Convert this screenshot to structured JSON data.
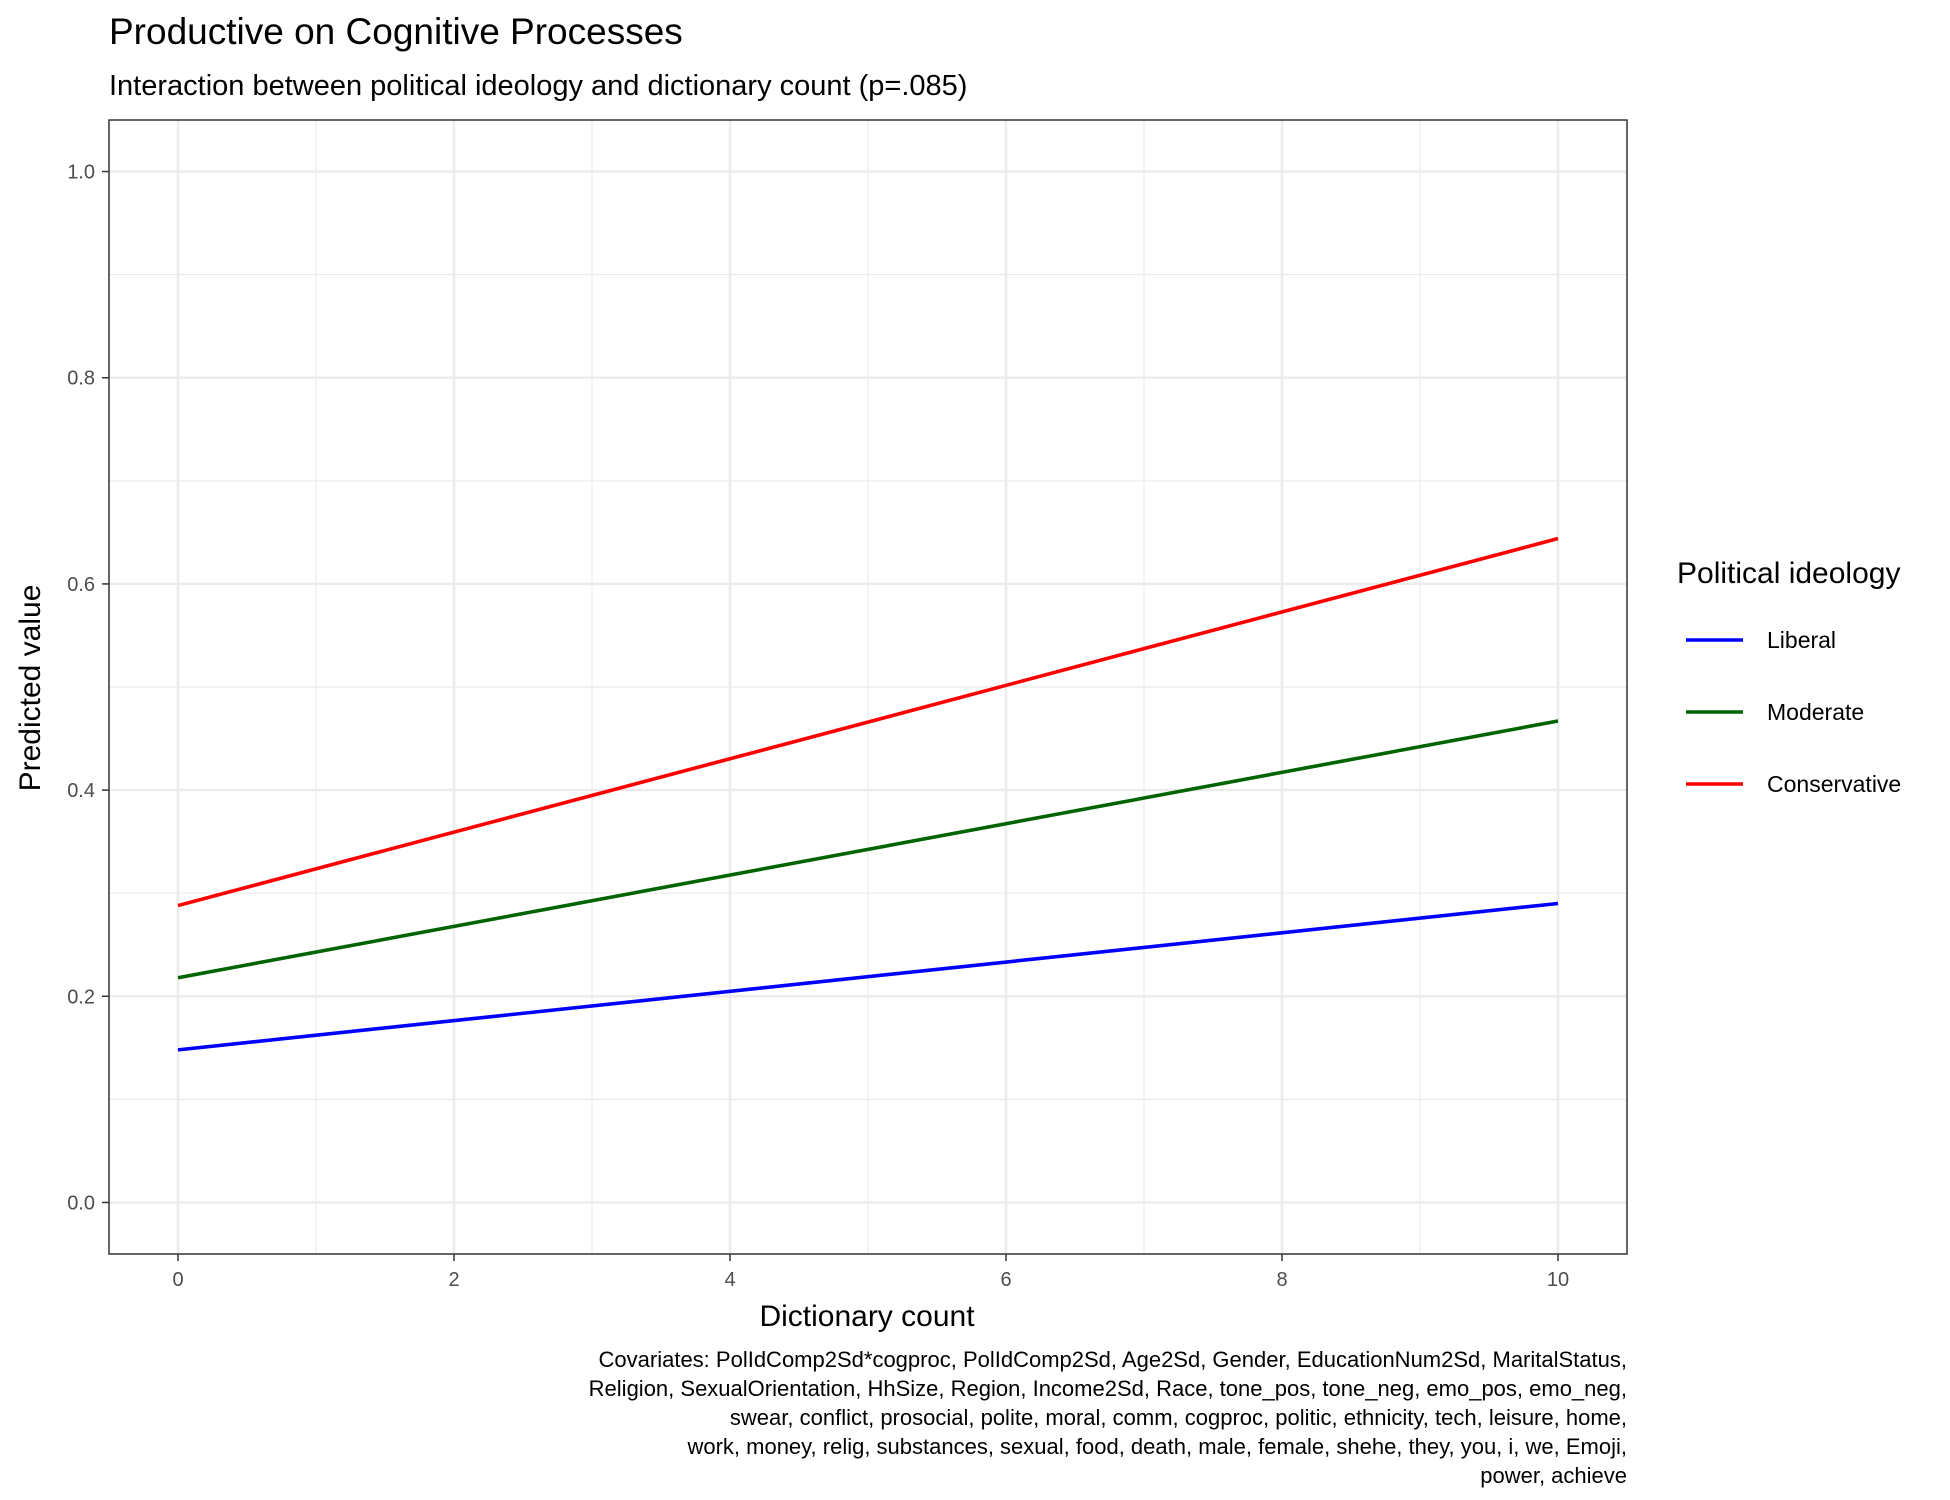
{
  "chart_data": {
    "type": "line",
    "title": "Productive on Cognitive Processes",
    "subtitle": "Interaction between political ideology and dictionary count (p=.085)",
    "xlabel": "Dictionary count",
    "ylabel": "Predicted value",
    "xlim": [
      -0.5,
      10.5
    ],
    "ylim": [
      -0.05,
      1.05
    ],
    "x_ticks": [
      0,
      2,
      4,
      6,
      8,
      10
    ],
    "y_ticks": [
      0.0,
      0.2,
      0.4,
      0.6,
      0.8,
      1.0
    ],
    "x_tick_labels": [
      "0",
      "2",
      "4",
      "6",
      "8",
      "10"
    ],
    "y_tick_labels": [
      "0.0",
      "0.2",
      "0.4",
      "0.6",
      "0.8",
      "1.0"
    ],
    "grid": true,
    "legend_title": "Political ideology",
    "legend_position": "right",
    "series": [
      {
        "name": "Liberal",
        "color": "#0000ff",
        "x": [
          0,
          10
        ],
        "values": [
          0.148,
          0.29
        ]
      },
      {
        "name": "Moderate",
        "color": "#006400",
        "x": [
          0,
          10
        ],
        "values": [
          0.218,
          0.467
        ]
      },
      {
        "name": "Conservative",
        "color": "#ff0000",
        "x": [
          0,
          10
        ],
        "values": [
          0.288,
          0.644
        ]
      }
    ],
    "caption_lines": [
      "Covariates: PolIdComp2Sd*cogproc, PolIdComp2Sd, Age2Sd, Gender, EducationNum2Sd, MaritalStatus,",
      "Religion, SexualOrientation, HhSize, Region, Income2Sd, Race, tone_pos, tone_neg, emo_pos, emo_neg,",
      "swear, conflict, prosocial, polite, moral, comm, cogproc, politic, ethnicity, tech, leisure, home,",
      "work, money, relig, substances, sexual, food, death, male, female, shehe, they, you, i, we, Emoji,",
      "power, achieve"
    ]
  }
}
